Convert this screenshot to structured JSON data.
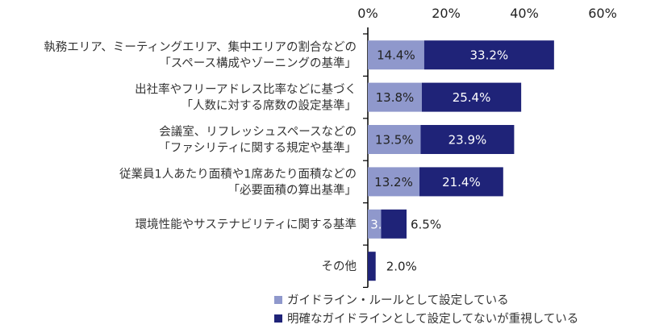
{
  "chart_data": {
    "type": "bar",
    "orientation": "horizontal",
    "stacked": true,
    "xlim": [
      0,
      60
    ],
    "xticks": [
      "0%",
      "20%",
      "40%",
      "60%"
    ],
    "xtick_values": [
      0,
      20,
      40,
      60
    ],
    "legend_position": "bottom",
    "categories": [
      [
        "執務エリア、ミーティングエリア、集中エリアの割合などの",
        "「スペース構成やゾーニングの基準」"
      ],
      [
        "出社率やフリーアドレス比率などに基づく",
        "「人数に対する席数の設定基準」"
      ],
      [
        "会議室、リフレッシュスペースなどの",
        "「ファシリティに関する規定や基準」"
      ],
      [
        "従業員1人あたり面積や1席あたり面積などの",
        "「必要面積の算出基準」"
      ],
      [
        "環境性能やサステナビリティに関する基準"
      ],
      [
        "その他"
      ]
    ],
    "series": [
      {
        "name": "ガイドライン・ルールとして設定している",
        "color": "#8f98cc",
        "values": [
          14.4,
          13.8,
          13.5,
          13.2,
          3.4,
          0
        ],
        "labels": [
          "14.4%",
          "13.8%",
          "13.5%",
          "13.2%",
          "3.4%",
          ""
        ]
      },
      {
        "name": "明確なガイドラインとして設定してないが重視している",
        "color": "#1f2378",
        "values": [
          33.2,
          25.4,
          23.9,
          21.4,
          6.5,
          2.0
        ],
        "labels": [
          "33.2%",
          "25.4%",
          "23.9%",
          "21.4%",
          "6.5%",
          "2.0%"
        ]
      }
    ]
  }
}
